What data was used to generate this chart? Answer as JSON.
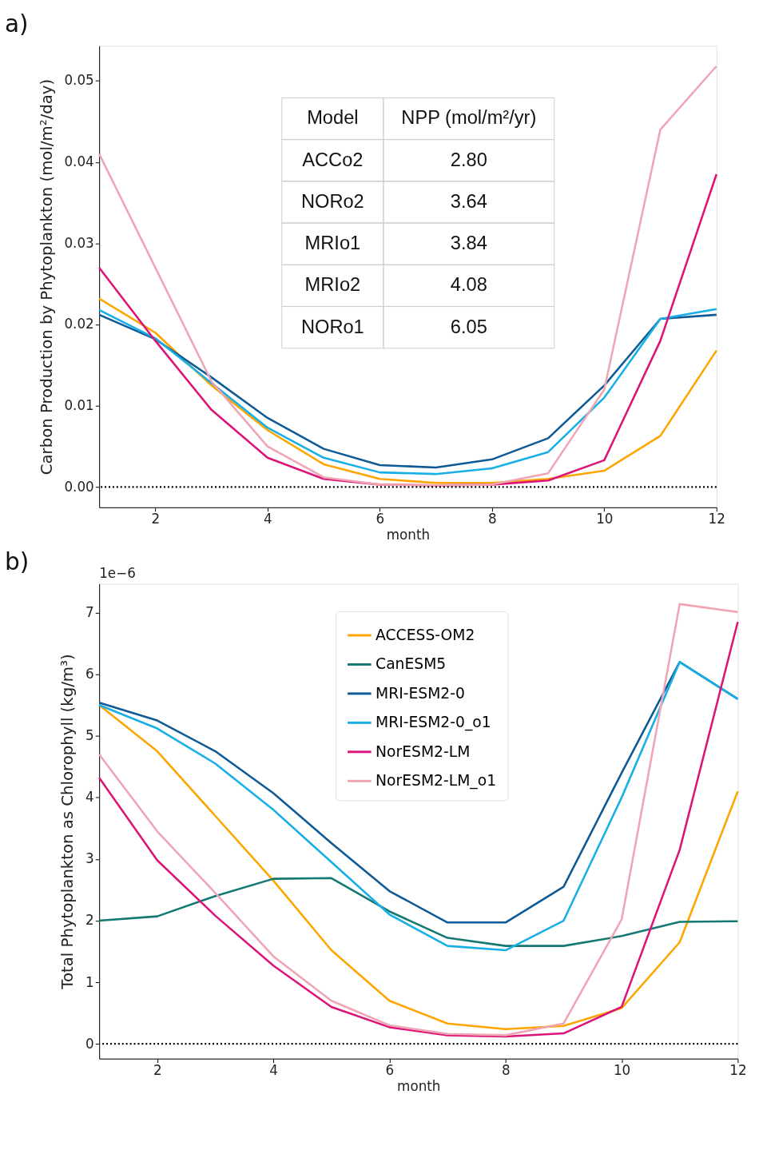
{
  "chart_data": [
    {
      "type": "line",
      "xlabel": "month",
      "ylabel": "Carbon Production by Phytoplankton (mol/m²/day)",
      "x": [
        1,
        2,
        3,
        4,
        5,
        6,
        7,
        8,
        9,
        10,
        11,
        12
      ],
      "xlim": [
        1,
        12
      ],
      "xticks": [
        2,
        4,
        6,
        8,
        10,
        12
      ],
      "ylim": [
        -0.0025,
        0.0543
      ],
      "yticks": [
        {
          "value": 0,
          "label": "0.00"
        },
        {
          "value": 0.01,
          "label": "0.01"
        },
        {
          "value": 0.02,
          "label": "0.02"
        },
        {
          "value": 0.03,
          "label": "0.03"
        },
        {
          "value": 0.04,
          "label": "0.04"
        },
        {
          "value": 0.05,
          "label": "0.05"
        }
      ],
      "grid": false,
      "legend": false,
      "line_style": "solid",
      "marker": "none",
      "series": [
        {
          "color": "#ffa500",
          "values": [
            0.0232,
            0.019,
            0.0125,
            0.007,
            0.0028,
            0.001,
            0.0005,
            0.0005,
            0.001,
            0.002,
            0.0063,
            0.0168
          ]
        },
        {
          "color": "#0e5a96",
          "values": [
            0.0212,
            0.0182,
            0.0135,
            0.0085,
            0.0047,
            0.0027,
            0.0024,
            0.0034,
            0.006,
            0.0125,
            0.0207,
            0.0212
          ]
        },
        {
          "color": "#18afe6",
          "values": [
            0.0218,
            0.0183,
            0.0128,
            0.0073,
            0.0036,
            0.0018,
            0.0016,
            0.0023,
            0.0043,
            0.011,
            0.0207,
            0.0219
          ]
        },
        {
          "color": "#dc1478",
          "values": [
            0.027,
            0.018,
            0.0095,
            0.0036,
            0.001,
            0.0003,
            0.0002,
            0.0003,
            0.0008,
            0.0033,
            0.018,
            0.0385
          ]
        },
        {
          "color": "#f0a5b4",
          "values": [
            0.041,
            0.027,
            0.013,
            0.005,
            0.0012,
            0.0003,
            0.0002,
            0.0003,
            0.0017,
            0.012,
            0.044,
            0.0518
          ]
        }
      ],
      "ref_lines": [
        {
          "axis": "y",
          "value": 0,
          "color": "#000000",
          "line_style": "dotted"
        }
      ],
      "annotations": [
        "a)",
        "Model",
        "NPP (mol/m²/yr)",
        "ACCo2",
        "2.80",
        "NORo2",
        "3.64",
        "MRIo1",
        "3.84",
        "MRIo2",
        "4.08",
        "NORo1",
        "6.05"
      ]
    },
    {
      "type": "line",
      "xlabel": "month",
      "ylabel": "Total Phytoplankton as Chlorophyll (kg/m³)",
      "x": [
        1,
        2,
        3,
        4,
        5,
        6,
        7,
        8,
        9,
        10,
        11,
        12
      ],
      "xlim": [
        1,
        12
      ],
      "xticks": [
        2,
        4,
        6,
        8,
        10,
        12
      ],
      "ylim": [
        -0.24,
        7.47
      ],
      "yticks": [
        0,
        1,
        2,
        3,
        4,
        5,
        6,
        7
      ],
      "grid": false,
      "legend": "top",
      "line_style": "solid",
      "marker": "none",
      "series": [
        {
          "name": "ACCESS-OM2",
          "color": "#ffa500",
          "values": [
            5.5,
            4.75,
            3.7,
            2.65,
            1.52,
            0.7,
            0.33,
            0.24,
            0.29,
            0.58,
            1.65,
            4.1
          ]
        },
        {
          "name": "CanESM5",
          "color": "#147873",
          "values": [
            2.0,
            2.07,
            2.4,
            2.68,
            2.69,
            2.15,
            1.72,
            1.59,
            1.59,
            1.75,
            1.98,
            1.99
          ]
        },
        {
          "name": "MRI-ESM2-0",
          "color": "#0e5a96",
          "values": [
            5.54,
            5.25,
            4.75,
            4.07,
            3.26,
            2.48,
            1.97,
            1.97,
            2.55,
            4.4,
            6.2,
            5.6
          ]
        },
        {
          "name": "MRI-ESM2-0_o1",
          "color": "#18afe6",
          "values": [
            5.5,
            5.12,
            4.55,
            3.8,
            2.95,
            2.1,
            1.59,
            1.52,
            2.0,
            4.0,
            6.2,
            5.6
          ]
        },
        {
          "name": "NorESM2-LM",
          "color": "#dc1478",
          "values": [
            4.32,
            2.98,
            2.08,
            1.27,
            0.6,
            0.27,
            0.14,
            0.12,
            0.17,
            0.6,
            3.15,
            6.85
          ]
        },
        {
          "name": "NorESM2-LM_o1",
          "color": "#f0a5b4",
          "values": [
            4.7,
            3.45,
            2.45,
            1.42,
            0.7,
            0.3,
            0.16,
            0.14,
            0.33,
            2.02,
            7.14,
            7.01
          ]
        }
      ],
      "ref_lines": [
        {
          "axis": "y",
          "value": 0,
          "color": "#000000",
          "line_style": "dotted"
        }
      ],
      "annotations": [
        "b)",
        "1e−6"
      ]
    }
  ]
}
